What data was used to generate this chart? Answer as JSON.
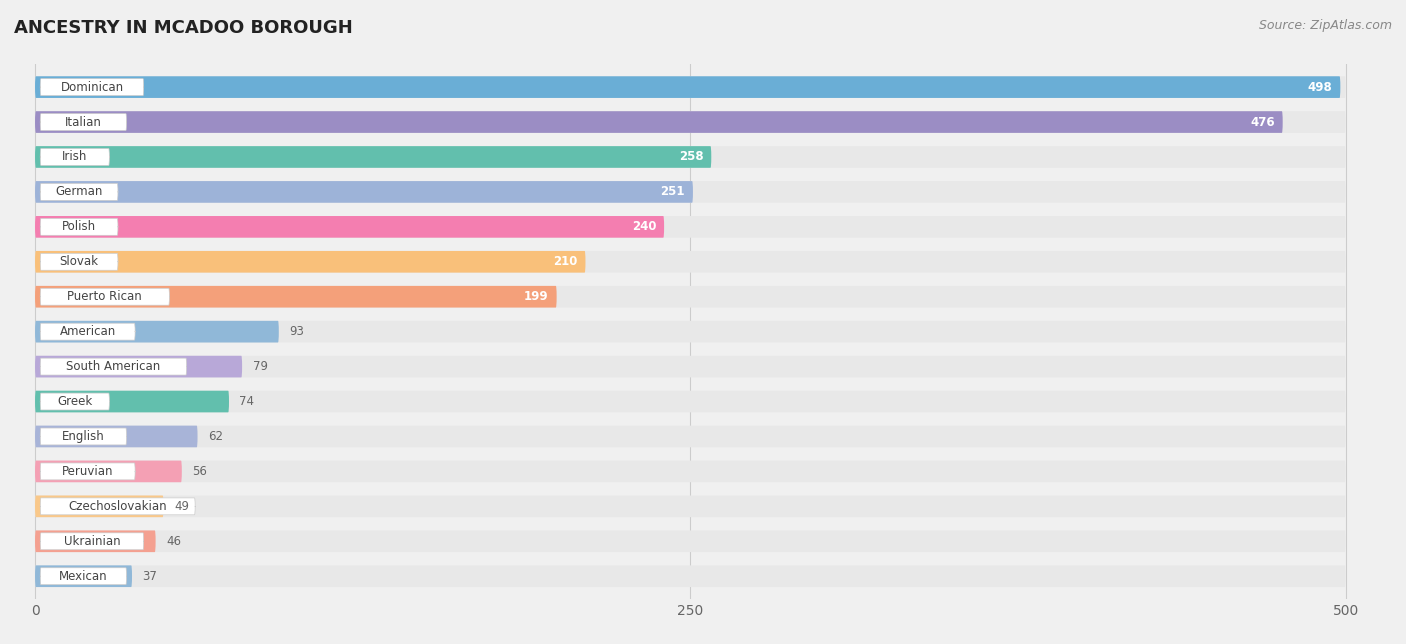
{
  "title": "ANCESTRY IN MCADOO BOROUGH",
  "source": "Source: ZipAtlas.com",
  "categories": [
    "Dominican",
    "Italian",
    "Irish",
    "German",
    "Polish",
    "Slovak",
    "Puerto Rican",
    "American",
    "South American",
    "Greek",
    "English",
    "Peruvian",
    "Czechoslovakian",
    "Ukrainian",
    "Mexican"
  ],
  "values": [
    498,
    476,
    258,
    251,
    240,
    210,
    199,
    93,
    79,
    74,
    62,
    56,
    49,
    46,
    37
  ],
  "colors": [
    "#6aaed6",
    "#9b8dc4",
    "#62bfad",
    "#9db3d8",
    "#f47eb0",
    "#f9c07a",
    "#f4a07a",
    "#90b8d8",
    "#b8a8d8",
    "#62bfad",
    "#a8b4d8",
    "#f4a0b4",
    "#f9c88a",
    "#f4a090",
    "#90b8d8"
  ],
  "xlim_min": -8,
  "xlim_max": 515,
  "xticks": [
    0,
    250,
    500
  ],
  "background_color": "#f0f0f0",
  "bar_bg_color": "#e8e8e8",
  "label_pill_color": "#ffffff",
  "label_text_color": "#444444",
  "value_color_inside": "#ffffff",
  "value_color_outside": "#666666",
  "inside_threshold": 150,
  "bar_height": 0.62,
  "bar_gap": 0.38
}
